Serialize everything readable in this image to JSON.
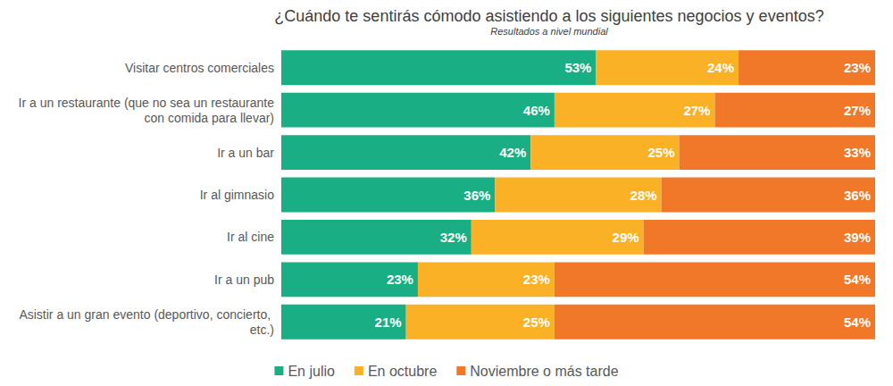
{
  "chart_data": {
    "type": "bar",
    "title": "¿Cuándo te sentirás cómodo asistiendo a los siguientes negocios y eventos?",
    "subtitle": "Resultados a nivel mundial",
    "orientation": "horizontal",
    "stacked": true,
    "data_labels": true,
    "tick_labels": "y",
    "grid": false,
    "legend": "bottom",
    "categories": [
      "Visitar centros comerciales",
      "Ir a un restaurante (que no sea un restaurante con comida para llevar)",
      "Ir a un bar",
      "Ir al gimnasio",
      "Ir al cine",
      "Ir a un pub",
      "Asistir a un gran evento (deportivo, concierto, etc.)"
    ],
    "xlim": [
      0,
      100
    ],
    "series": [
      {
        "name": "En julio",
        "color": "#19ae83",
        "values": [
          53,
          46,
          42,
          36,
          32,
          23,
          21
        ],
        "value_labels": [
          "53%",
          "46%",
          "42%",
          "36%",
          "32%",
          "23%",
          "21%"
        ]
      },
      {
        "name": "En octubre",
        "color": "#fbb126",
        "values": [
          24,
          27,
          25,
          28,
          29,
          23,
          25
        ],
        "value_labels": [
          "24%",
          "27%",
          "25%",
          "28%",
          "29%",
          "23%",
          "25%"
        ]
      },
      {
        "name": "Noviembre o más tarde",
        "color": "#f07828",
        "values": [
          23,
          27,
          33,
          36,
          39,
          54,
          54
        ],
        "value_labels": [
          "23%",
          "27%",
          "33%",
          "36%",
          "39%",
          "54%",
          "54%"
        ]
      }
    ]
  }
}
